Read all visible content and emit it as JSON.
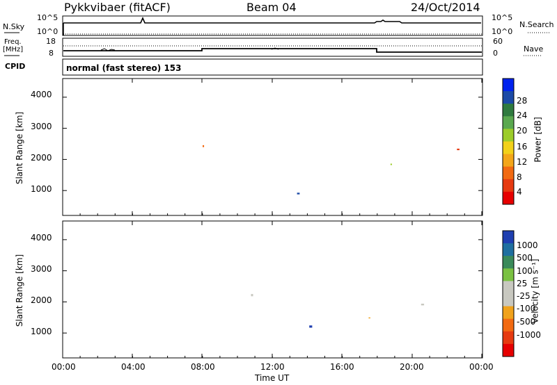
{
  "header": {
    "station": "Pykkvibaer (fitACF)",
    "beam": "Beam 04",
    "date": "24/Oct/2014"
  },
  "noise_panel": {
    "left_label": "N.Sky",
    "left_ticks": [
      "10^5",
      "10^0"
    ],
    "right_ticks": [
      "10^5",
      "10^0"
    ],
    "right_label": "N.Search"
  },
  "freq_panel": {
    "left_label_1": "Freq.",
    "left_label_2": "[MHz]",
    "left_ticks": [
      "18",
      "8"
    ],
    "right_ticks": [
      "60",
      "0"
    ],
    "right_label": "Nave"
  },
  "cpid_panel": {
    "label": "CPID",
    "text": "normal (fast stereo) 153"
  },
  "chart_data": [
    {
      "type": "heatmap",
      "panel": "power",
      "ylabel": "Slant Range [km]",
      "ylim": [
        200,
        4600
      ],
      "yticks": [
        "4000",
        "3000",
        "2000",
        "1000"
      ],
      "xlim": [
        "00:00",
        "24:00"
      ],
      "colorbar": {
        "label": "Power [dB]",
        "ticks": [
          "28",
          "24",
          "20",
          "16",
          "12",
          "8",
          "4"
        ],
        "colors": [
          "#0022ee",
          "#1c4aa6",
          "#2f7a3f",
          "#5aa84f",
          "#9ccc2a",
          "#f2d11a",
          "#f3a61a",
          "#f26a12",
          "#e63a10",
          "#e60000"
        ]
      }
    },
    {
      "type": "heatmap",
      "panel": "velocity",
      "ylabel": "Slant Range [km]",
      "ylim": [
        200,
        4600
      ],
      "yticks": [
        "4000",
        "3000",
        "2000",
        "1000"
      ],
      "xlabel": "Time UT",
      "xticks": [
        "00:00",
        "04:00",
        "08:00",
        "12:00",
        "16:00",
        "20:00",
        "00:00"
      ],
      "colorbar": {
        "label": "Velocity [m s⁻¹]",
        "ticks": [
          "1000",
          "500",
          "100",
          "25",
          "-25",
          "-100",
          "-500",
          "-1000"
        ],
        "colors": [
          "#1f3fb0",
          "#1f6fa0",
          "#3a8a5a",
          "#7ac142",
          "#c8c8c0",
          "#c8c8c0",
          "#f0a21c",
          "#f26a12",
          "#e63a10",
          "#e60000"
        ]
      }
    }
  ]
}
